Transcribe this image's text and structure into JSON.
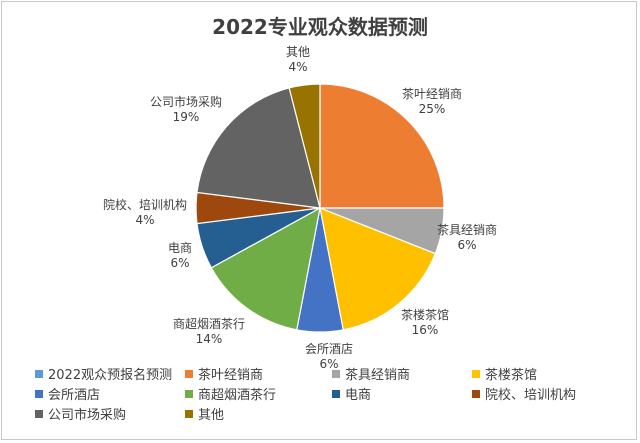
{
  "chart_data": {
    "type": "pie",
    "title": "2022专业观众数据预测",
    "series_name": "2022观众预报名预测",
    "series_color": "#5b9bd5",
    "slices": [
      {
        "name": "茶叶经销商",
        "value": 25,
        "label": "25%",
        "color": "#ed7d31"
      },
      {
        "name": "茶具经销商",
        "value": 6,
        "label": "6%",
        "color": "#a5a5a5"
      },
      {
        "name": "茶楼茶馆",
        "value": 16,
        "label": "16%",
        "color": "#ffc000"
      },
      {
        "name": "会所酒店",
        "value": 6,
        "label": "6%",
        "color": "#4472c4"
      },
      {
        "name": "商超烟酒茶行",
        "value": 14,
        "label": "14%",
        "color": "#70ad47"
      },
      {
        "name": "电商",
        "value": 6,
        "label": "6%",
        "color": "#255e91"
      },
      {
        "name": "院校、培训机构",
        "value": 4,
        "label": "4%",
        "color": "#9e480e"
      },
      {
        "name": "公司市场采购",
        "value": 19,
        "label": "19%",
        "color": "#636363"
      },
      {
        "name": "其他",
        "value": 4,
        "label": "4%",
        "color": "#997300"
      }
    ]
  }
}
